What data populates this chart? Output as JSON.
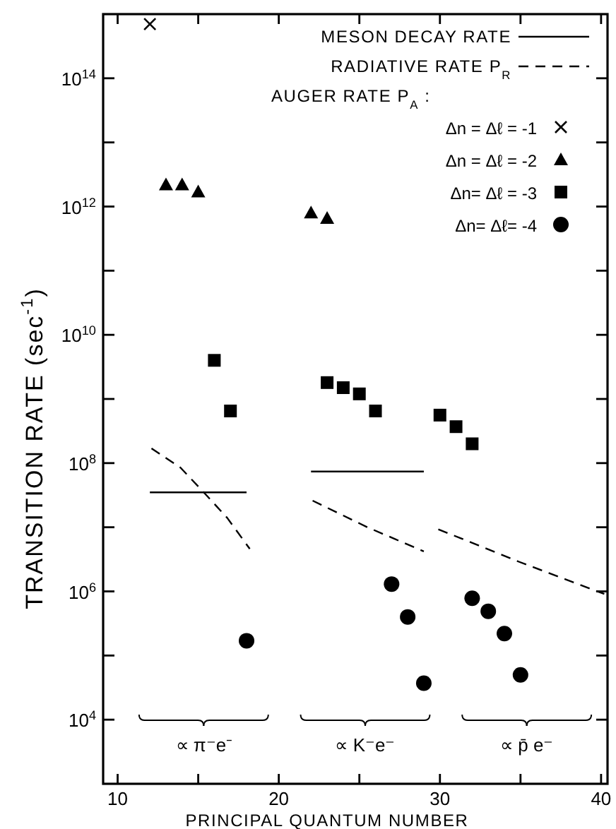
{
  "chart_data": {
    "type": "scatter",
    "xlabel": "PRINCIPAL QUANTUM NUMBER",
    "ylabel": "TRANSITION RATE  (sec$^{-1}$)",
    "legend_title": "AUGER RATE P$_{A}$ :",
    "legend": "top right",
    "log": "y",
    "grid": false,
    "xlim": [
      9.1,
      40.4
    ],
    "xticks": [
      10,
      {
        "value": 15,
        "label": null
      },
      20,
      {
        "value": 25,
        "label": null
      },
      30,
      {
        "value": 35,
        "label": null
      },
      40
    ],
    "ylim": [
      1000.0,
      1000000000000000.0
    ],
    "yticks": [
      {
        "value": 10000.0,
        "label": "10$^{4}$"
      },
      {
        "value": 100000.0,
        "label": null
      },
      {
        "value": 1000000.0,
        "label": "10$^{6}$"
      },
      {
        "value": 10000000.0,
        "label": null
      },
      {
        "value": 100000000.0,
        "label": "10$^{8}$"
      },
      {
        "value": 1000000000.0,
        "label": null
      },
      {
        "value": 10000000000.0,
        "label": "10$^{10}$"
      },
      {
        "value": 100000000000.0,
        "label": null
      },
      {
        "value": 1000000000000.0,
        "label": "10$^{12}$"
      },
      {
        "value": 10000000000000.0,
        "label": null
      },
      {
        "value": 100000000000000.0,
        "label": "10$^{14}$"
      }
    ],
    "annotations": [
      "∝ π⁻e⁻",
      "∝ K⁻e⁻",
      "∝ p̄ e⁻"
    ],
    "series": [
      {
        "name": "MESON DECAY RATE",
        "type": "line",
        "line_style": "solid",
        "marker": "none",
        "color": "#000000",
        "x": [
          12,
          18
        ],
        "values": [
          35000000.0,
          35000000.0
        ]
      },
      {
        "name": "RADIATIVE RATE P$_{R}$",
        "type": "line",
        "line_style": "dashed",
        "marker": "none",
        "color": "#000000",
        "x": [
          12.1,
          13.9,
          15.3,
          16.8,
          18.2
        ],
        "values": [
          170000000.0,
          85000000.0,
          36000000.0,
          14000000.0,
          4600000.0
        ]
      },
      {
        "type": "line",
        "line_style": "solid",
        "marker": "none",
        "color": "#000000",
        "x": [
          22,
          29
        ],
        "values": [
          74000000.0,
          74000000.0
        ]
      },
      {
        "type": "line",
        "line_style": "dashed",
        "marker": "none",
        "color": "#000000",
        "x": [
          22.1,
          25.5,
          29
        ],
        "values": [
          26000000.0,
          10000000.0,
          4200000.0
        ]
      },
      {
        "type": "line",
        "line_style": "dashed",
        "marker": "none",
        "color": "#000000",
        "x": [
          29.9,
          34.9,
          40.2
        ],
        "values": [
          9300000.0,
          2900000.0,
          910000.0
        ]
      },
      {
        "name": "Δn = Δℓ = -1",
        "type": "scatter",
        "marker": "cross",
        "color": "#000000",
        "x": [
          12
        ],
        "values": [
          700000000000000.0
        ]
      },
      {
        "name": "Δn = Δℓ = -2",
        "type": "scatter",
        "marker": "triangle",
        "color": "#000000",
        "x": [
          13,
          14,
          15,
          22,
          23
        ],
        "values": [
          2200000000000.0,
          2200000000000.0,
          1700000000000.0,
          800000000000.0,
          660000000000.0
        ]
      },
      {
        "name": "Δn= Δℓ = -3",
        "type": "scatter",
        "marker": "square",
        "color": "#000000",
        "x": [
          16,
          17,
          23,
          24,
          25,
          26,
          30,
          31,
          32
        ],
        "values": [
          4000000000.0,
          650000000.0,
          1800000000.0,
          1500000000.0,
          1200000000.0,
          650000000.0,
          560000000.0,
          370000000.0,
          200000000.0
        ]
      },
      {
        "name": "Δn= Δℓ= -4",
        "type": "scatter",
        "marker": "circle",
        "color": "#000000",
        "x": [
          18,
          27,
          28,
          29,
          32,
          33,
          34,
          35
        ],
        "values": [
          170000.0,
          1300000.0,
          400000.0,
          37000.0,
          780000.0,
          490000.0,
          220000.0,
          50000.0
        ]
      }
    ]
  }
}
